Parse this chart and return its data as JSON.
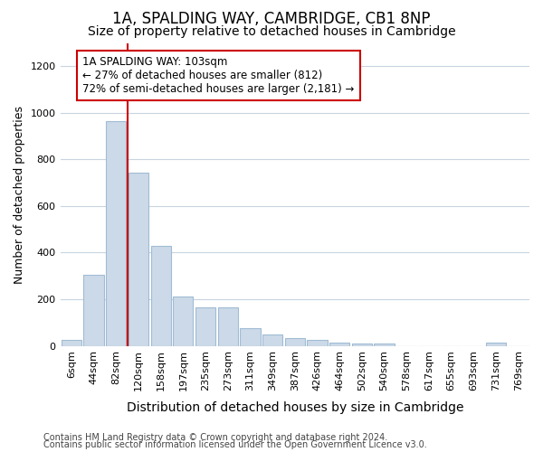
{
  "title": "1A, SPALDING WAY, CAMBRIDGE, CB1 8NP",
  "subtitle": "Size of property relative to detached houses in Cambridge",
  "xlabel": "Distribution of detached houses by size in Cambridge",
  "ylabel": "Number of detached properties",
  "bar_color": "#ccd9e8",
  "bar_edge_color": "#a0bcd4",
  "vline_color": "#cc0000",
  "vline_x": 2.5,
  "categories": [
    "6sqm",
    "44sqm",
    "82sqm",
    "120sqm",
    "158sqm",
    "197sqm",
    "235sqm",
    "273sqm",
    "311sqm",
    "349sqm",
    "387sqm",
    "426sqm",
    "464sqm",
    "502sqm",
    "540sqm",
    "578sqm",
    "617sqm",
    "655sqm",
    "693sqm",
    "731sqm",
    "769sqm"
  ],
  "values": [
    25,
    305,
    965,
    745,
    430,
    210,
    165,
    165,
    75,
    50,
    35,
    25,
    15,
    10,
    10,
    0,
    0,
    0,
    0,
    12,
    0
  ],
  "ylim": [
    0,
    1300
  ],
  "yticks": [
    0,
    200,
    400,
    600,
    800,
    1000,
    1200
  ],
  "annotation_text": "1A SPALDING WAY: 103sqm\n← 27% of detached houses are smaller (812)\n72% of semi-detached houses are larger (2,181) →",
  "annotation_box_facecolor": "#ffffff",
  "annotation_box_edgecolor": "#cc0000",
  "footer1": "Contains HM Land Registry data © Crown copyright and database right 2024.",
  "footer2": "Contains public sector information licensed under the Open Government Licence v3.0.",
  "bg_color": "#ffffff",
  "grid_color": "#c8d4e0",
  "title_fontsize": 12,
  "subtitle_fontsize": 10,
  "xlabel_fontsize": 10,
  "ylabel_fontsize": 9,
  "tick_fontsize": 8,
  "annotation_fontsize": 8.5,
  "footer_fontsize": 7
}
